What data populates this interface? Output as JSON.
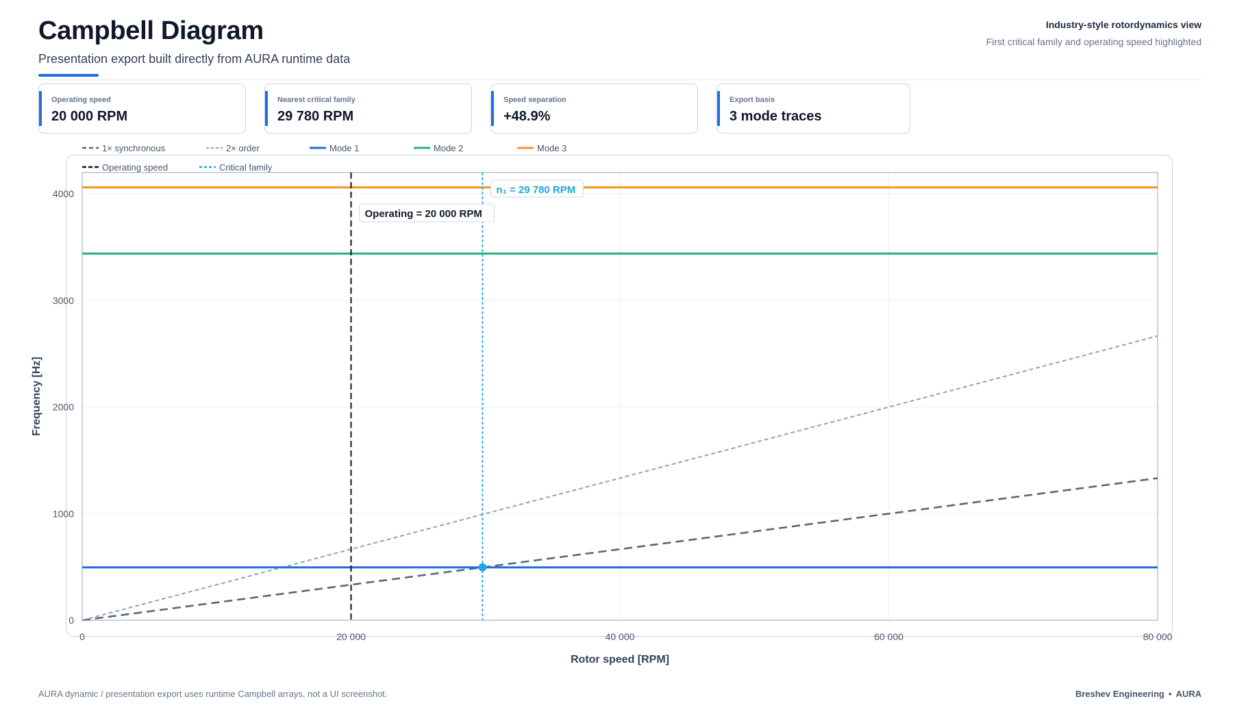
{
  "header": {
    "title": "Campbell Diagram",
    "subtitle": "Presentation export built directly from AURA runtime data",
    "right_title": "Industry-style rotordynamics view",
    "right_subtitle": "First critical family and operating speed highlighted"
  },
  "kpis": [
    {
      "label": "Operating speed",
      "value": "20 000 RPM"
    },
    {
      "label": "Nearest critical family",
      "value": "29 780 RPM"
    },
    {
      "label": "Speed separation",
      "value": "+48.9%"
    },
    {
      "label": "Export basis",
      "value": "3 mode traces"
    }
  ],
  "colors": {
    "accent": "#1d6fe0",
    "sync": "#5b6478",
    "order2": "#94a0b4",
    "mode1": "#1d6fe0",
    "mode2": "#22b573",
    "mode3": "#f7941d",
    "operating": "#111111",
    "critical": "#1ea7dc"
  },
  "chart_data": {
    "type": "line",
    "xlabel": "Rotor speed [RPM]",
    "ylabel": "Frequency [Hz]",
    "xlim": [
      0,
      80000
    ],
    "ylim": [
      0,
      4200
    ],
    "x_ticks": [
      0,
      20000,
      40000,
      60000,
      80000
    ],
    "x_tick_labels": [
      "0",
      "20 000",
      "40 000",
      "60 000",
      "80 000"
    ],
    "y_ticks": [
      0,
      1000,
      2000,
      3000,
      4000
    ],
    "y_tick_labels": [
      "0",
      "1000",
      "2000",
      "3000",
      "4000"
    ],
    "grid": true,
    "legend_position": "top-left",
    "series": [
      {
        "name": "1× synchronous",
        "style": "dashed",
        "x": [
          0,
          80000
        ],
        "y": [
          0,
          1333
        ]
      },
      {
        "name": "2× order",
        "style": "dotted",
        "x": [
          0,
          80000
        ],
        "y": [
          0,
          2667
        ]
      },
      {
        "name": "Mode 1",
        "style": "solid",
        "x": [
          0,
          80000
        ],
        "y": [
          496,
          496
        ]
      },
      {
        "name": "Mode 2",
        "style": "solid",
        "x": [
          0,
          80000
        ],
        "y": [
          3440,
          3440
        ]
      },
      {
        "name": "Mode 3",
        "style": "solid",
        "x": [
          0,
          80000
        ],
        "y": [
          4060,
          4060
        ]
      }
    ],
    "legend_extra": [
      {
        "name": "Operating speed",
        "style": "dashed"
      },
      {
        "name": "Critical family",
        "style": "dotted"
      }
    ],
    "operating_speed": 20000,
    "critical_speed": 29780,
    "critical_point": {
      "x": 29780,
      "y": 496
    },
    "annotations": {
      "operating_label": "Operating = 20 000 RPM",
      "critical_label": "n₁ = 29 780 RPM"
    }
  },
  "footer": {
    "left": "AURA dynamic / presentation export uses runtime Campbell arrays, not a UI screenshot.",
    "right_company": "Breshev Engineering",
    "right_dot": "•",
    "right_product": "AURA"
  }
}
